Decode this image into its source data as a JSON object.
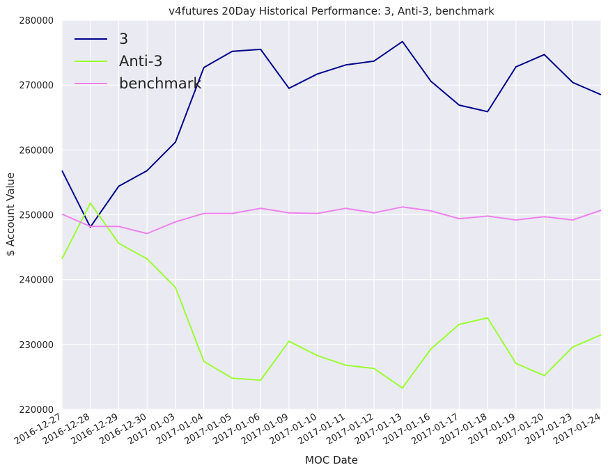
{
  "chart_data": {
    "type": "line",
    "title": "v4futures 20Day Historical Performance: 3, Anti-3, benchmark",
    "xlabel": "MOC Date",
    "ylabel": "$ Account Value",
    "ylim": [
      220000,
      280000
    ],
    "yticks": [
      "220000",
      "230000",
      "240000",
      "250000",
      "260000",
      "270000",
      "280000"
    ],
    "grid": true,
    "legend_position": "top-left",
    "background": "#eaeaf2",
    "categories": [
      "2016-12-27",
      "2016-12-28",
      "2016-12-29",
      "2016-12-30",
      "2017-01-03",
      "2017-01-04",
      "2017-01-05",
      "2017-01-06",
      "2017-01-09",
      "2017-01-10",
      "2017-01-11",
      "2017-01-12",
      "2017-01-13",
      "2017-01-16",
      "2017-01-17",
      "2017-01-18",
      "2017-01-19",
      "2017-01-20",
      "2017-01-23",
      "2017-01-24"
    ],
    "series": [
      {
        "name": "3",
        "color": "#00008b",
        "values": [
          256800,
          248100,
          254400,
          256800,
          261200,
          272700,
          275200,
          275500,
          269500,
          271700,
          273100,
          273700,
          276700,
          270600,
          266900,
          265900,
          272800,
          274700,
          270400,
          268500
        ]
      },
      {
        "name": "Anti-3",
        "color": "#9aff33",
        "values": [
          243200,
          251800,
          245600,
          243200,
          238800,
          227400,
          224800,
          224500,
          230500,
          228300,
          226800,
          226300,
          223300,
          229300,
          233100,
          234100,
          227100,
          225200,
          229600,
          231500
        ]
      },
      {
        "name": "benchmark",
        "color": "#ee82ee",
        "values": [
          250100,
          248200,
          248200,
          247100,
          248900,
          250200,
          250200,
          251000,
          250300,
          250200,
          251000,
          250300,
          251200,
          250600,
          249400,
          249800,
          249200,
          249700,
          249200,
          250700
        ]
      }
    ]
  }
}
